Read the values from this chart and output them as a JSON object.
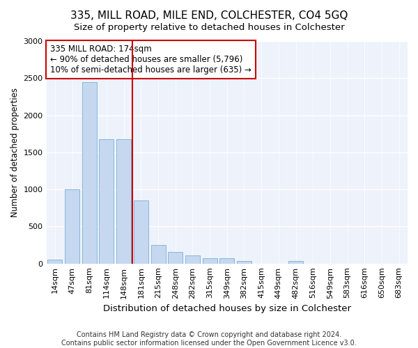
{
  "title": "335, MILL ROAD, MILE END, COLCHESTER, CO4 5GQ",
  "subtitle": "Size of property relative to detached houses in Colchester",
  "xlabel": "Distribution of detached houses by size in Colchester",
  "ylabel": "Number of detached properties",
  "categories": [
    "14sqm",
    "47sqm",
    "81sqm",
    "114sqm",
    "148sqm",
    "181sqm",
    "215sqm",
    "248sqm",
    "282sqm",
    "315sqm",
    "349sqm",
    "382sqm",
    "415sqm",
    "449sqm",
    "482sqm",
    "516sqm",
    "549sqm",
    "583sqm",
    "616sqm",
    "650sqm",
    "683sqm"
  ],
  "values": [
    50,
    1000,
    2450,
    1680,
    1680,
    850,
    250,
    160,
    110,
    70,
    70,
    30,
    0,
    0,
    30,
    0,
    0,
    0,
    0,
    0,
    0
  ],
  "bar_color": "#c5d8f0",
  "bar_edge_color": "#7bafd4",
  "vline_index": 5,
  "vline_color": "#cc0000",
  "annotation_line1": "335 MILL ROAD: 174sqm",
  "annotation_line2": "← 90% of detached houses are smaller (5,796)",
  "annotation_line3": "10% of semi-detached houses are larger (635) →",
  "annotation_box_color": "#ffffff",
  "annotation_box_edge": "#cc0000",
  "annotation_fontsize": 8.5,
  "title_fontsize": 11,
  "subtitle_fontsize": 9.5,
  "xlabel_fontsize": 9.5,
  "ylabel_fontsize": 8.5,
  "tick_fontsize": 8,
  "footnote1": "Contains HM Land Registry data © Crown copyright and database right 2024.",
  "footnote2": "Contains public sector information licensed under the Open Government Licence v3.0.",
  "footnote_fontsize": 7,
  "background_color": "#ffffff",
  "plot_background": "#edf2fb",
  "grid_color": "#ffffff",
  "ylim": [
    0,
    3000
  ],
  "yticks": [
    0,
    500,
    1000,
    1500,
    2000,
    2500,
    3000
  ]
}
